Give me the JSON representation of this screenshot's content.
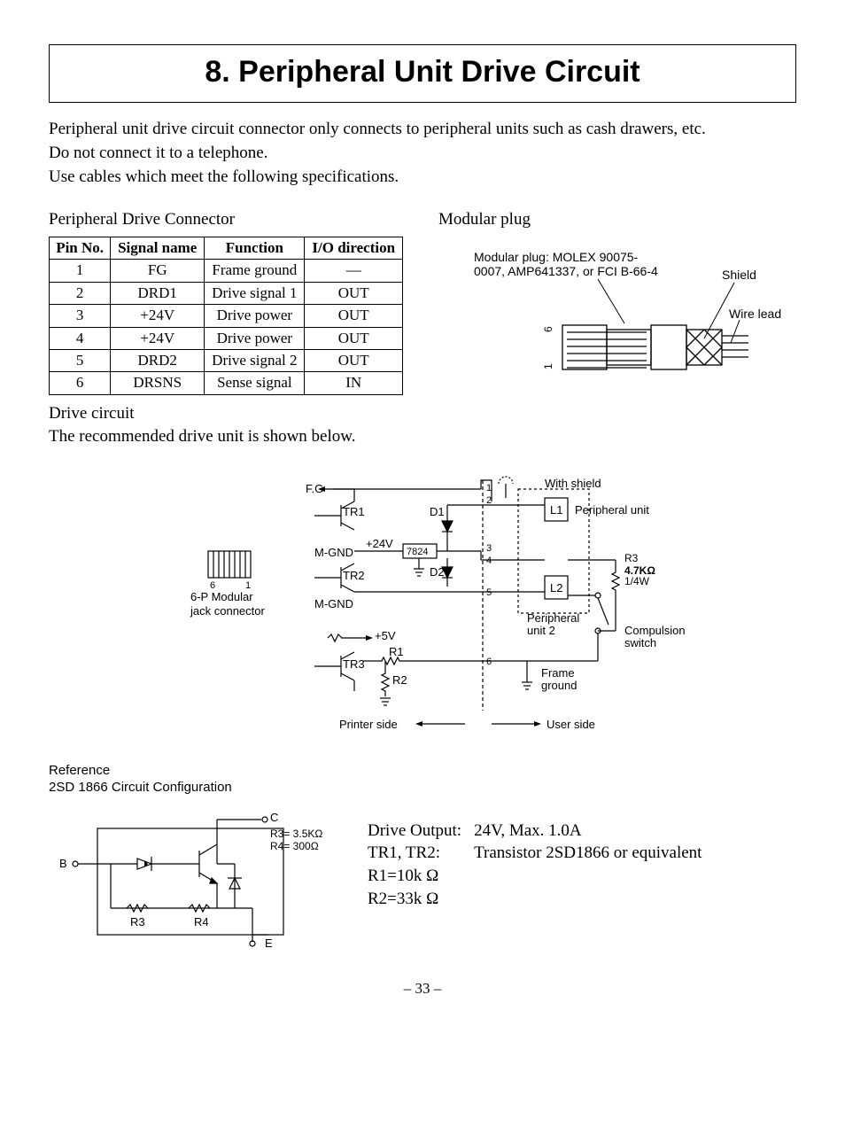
{
  "title": "8. Peripheral Unit Drive Circuit",
  "intro": {
    "p1": "Peripheral unit drive circuit connector only connects to peripheral units such as cash drawers, etc.",
    "p2": "Do not connect it to a telephone.",
    "p3": "Use cables which meet the following specifications."
  },
  "left_heading": "Peripheral Drive Connector",
  "right_heading": "Modular plug",
  "pin_table": {
    "headers": {
      "pin": "Pin No.",
      "signal": "Signal name",
      "func": "Function",
      "io": "I/O direction"
    },
    "rows": [
      {
        "pin": "1",
        "signal": "FG",
        "func": "Frame ground",
        "io": "—"
      },
      {
        "pin": "2",
        "signal": "DRD1",
        "func": "Drive signal 1",
        "io": "OUT"
      },
      {
        "pin": "3",
        "signal": "+24V",
        "func": "Drive power",
        "io": "OUT"
      },
      {
        "pin": "4",
        "signal": "+24V",
        "func": "Drive power",
        "io": "OUT"
      },
      {
        "pin": "5",
        "signal": "DRD2",
        "func": "Drive signal 2",
        "io": "OUT"
      },
      {
        "pin": "6",
        "signal": "DRSNS",
        "func": "Sense signal",
        "io": "IN"
      }
    ]
  },
  "plug": {
    "line1": "Modular plug: MOLEX 90075-",
    "line2": "0007, AMP641337, or FCI B-66-4",
    "shield": "Shield",
    "wire_lead": "Wire lead",
    "pin6": "6",
    "pin1": "1"
  },
  "after_table": {
    "l1": "Drive circuit",
    "l2": "The recommended drive unit is shown below."
  },
  "circuit": {
    "fg": "F.G",
    "tr1": "TR1",
    "tr2": "TR2",
    "tr3": "TR3",
    "mgnd": "M-GND",
    "p24v": "+24V",
    "p5v": "+5V",
    "ic7824": "7824",
    "d1": "D1",
    "d2": "D2",
    "r1": "R1",
    "r2": "R2",
    "r3lbl": "R3",
    "r3val1": "4.7KΩ",
    "r3val2": "1/4W",
    "l1": "L1",
    "l2": "L2",
    "n1": "1",
    "n2": "2",
    "n3": "3",
    "n4": "4",
    "n5": "5",
    "n6": "6",
    "with_shield": "With shield",
    "pu1": "Peripheral unit",
    "pu2a": "Peripheral",
    "pu2b": "unit 2",
    "comp1": "Compulsion",
    "comp2": "switch",
    "frame1": "Frame",
    "frame2": "ground",
    "printer_side": "Printer side",
    "user_side": "User side",
    "jack1": "6-P Modular",
    "jack2": "jack connector",
    "jc6": "6",
    "jc1": "1"
  },
  "reference": {
    "title": "Reference",
    "sub": "2SD 1866 Circuit Configuration",
    "b": "B",
    "c": "C",
    "e": "E",
    "r3": "R3",
    "r4": "R4",
    "r3v": "R3= 3.5KΩ",
    "r4v": "R4= 300Ω"
  },
  "specs": {
    "drive_out_l": "Drive Output:",
    "drive_out_v": "24V, Max. 1.0A",
    "tr_l": "TR1, TR2:",
    "tr_v": "Transistor 2SD1866 or equivalent",
    "r1": "R1=10k Ω",
    "r2": "R2=33k Ω"
  },
  "page_num": "– 33 –"
}
